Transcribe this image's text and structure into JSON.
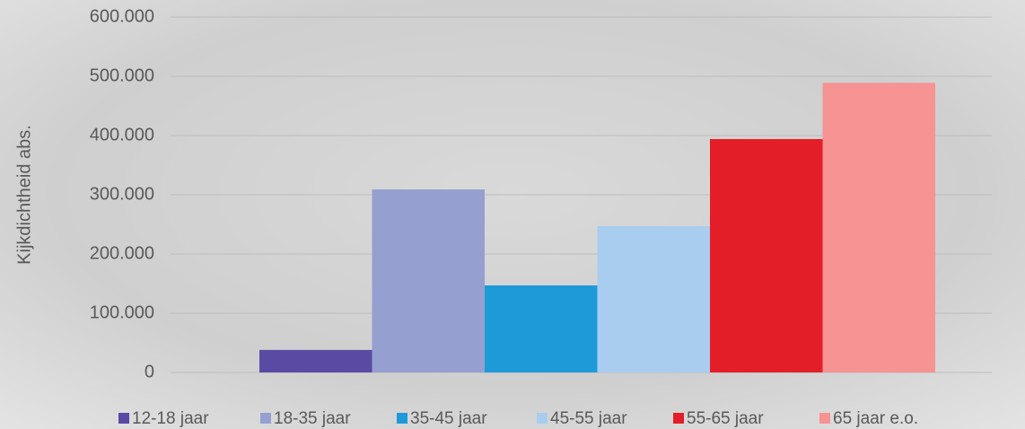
{
  "chart_data": {
    "type": "bar",
    "y_label": "Kijkdichtheid abs.",
    "series": [
      {
        "name": "12-18 jaar",
        "color": "#5a4aa3",
        "values": [
          38000
        ]
      },
      {
        "name": "18-35 jaar",
        "color": "#959fd0",
        "values": [
          309000
        ]
      },
      {
        "name": "35-45 jaar",
        "color": "#1f9ad8",
        "values": [
          147000
        ]
      },
      {
        "name": "45-55 jaar",
        "color": "#a8cdee",
        "values": [
          247000
        ]
      },
      {
        "name": "55-65 jaar",
        "color": "#e31e28",
        "values": [
          394000
        ]
      },
      {
        "name": "65 jaar e.o.",
        "color": "#f69393",
        "values": [
          489000
        ]
      }
    ],
    "ylim": [
      0,
      600000
    ],
    "yticks": [
      {
        "value": 0,
        "label": "0"
      },
      {
        "value": 100000,
        "label": "100.000"
      },
      {
        "value": 200000,
        "label": "200.000"
      },
      {
        "value": 300000,
        "label": "300.000"
      },
      {
        "value": 400000,
        "label": "400.000"
      },
      {
        "value": 500000,
        "label": "500.000"
      },
      {
        "value": 600000,
        "label": "600.000"
      }
    ],
    "grid": true,
    "legend": "bottom"
  }
}
